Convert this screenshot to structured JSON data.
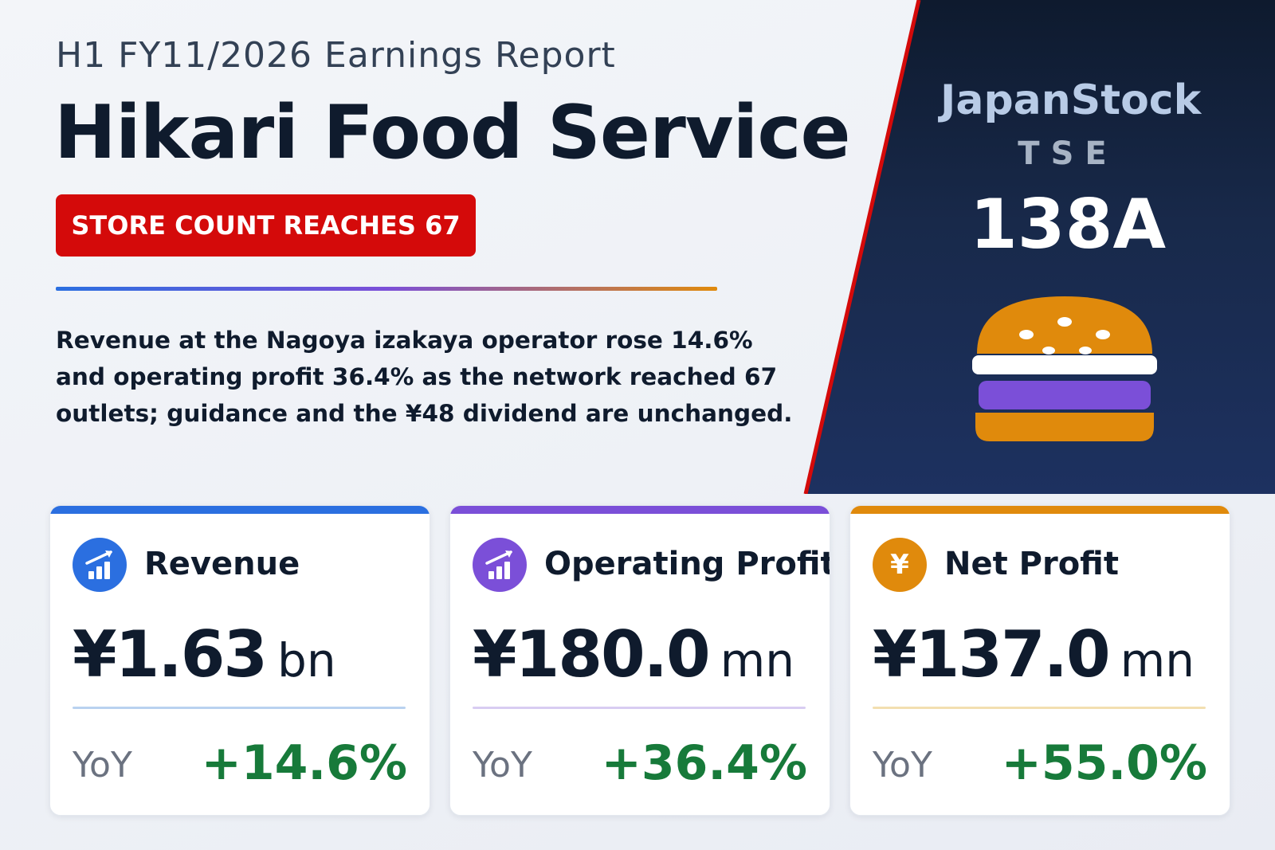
{
  "header": {
    "subtitle": "H1 FY11/2026 Earnings Report",
    "company": "Hikari Food Service",
    "badge": "STORE COUNT REACHES 67",
    "summary_lines": [
      "Revenue at the Nagoya izakaya operator rose 14.6%",
      "and operating profit 36.4% as the network reached 67",
      "outlets; guidance and the ¥48 dividend are unchanged."
    ]
  },
  "side_panel": {
    "brand": "JapanStock",
    "exchange": "TSE",
    "ticker": "138A",
    "illustration": "burger-icon"
  },
  "cards": [
    {
      "title": "Revenue",
      "icon": "bar-chart-up-icon",
      "value": "¥1.63",
      "unit": "bn",
      "yoy_label": "YoY",
      "yoy_value": "+14.6%",
      "accent": "#2b6fe0"
    },
    {
      "title": "Operating Profit",
      "icon": "bar-chart-up-icon",
      "value": "¥180.0",
      "unit": "mn",
      "yoy_label": "YoY",
      "yoy_value": "+36.4%",
      "accent": "#7b4fd8"
    },
    {
      "title": "Net Profit",
      "icon": "yen-icon",
      "icon_glyph": "¥",
      "value": "¥137.0",
      "unit": "mn",
      "yoy_label": "YoY",
      "yoy_value": "+55.0%",
      "accent": "#e08a0c"
    }
  ],
  "colors": {
    "badge_red": "#d40a0a",
    "panel_navy": "#18294a",
    "positive_green": "#177a3a",
    "burger_bun": "#e08a0c",
    "burger_patty": "#7b4fd8"
  }
}
